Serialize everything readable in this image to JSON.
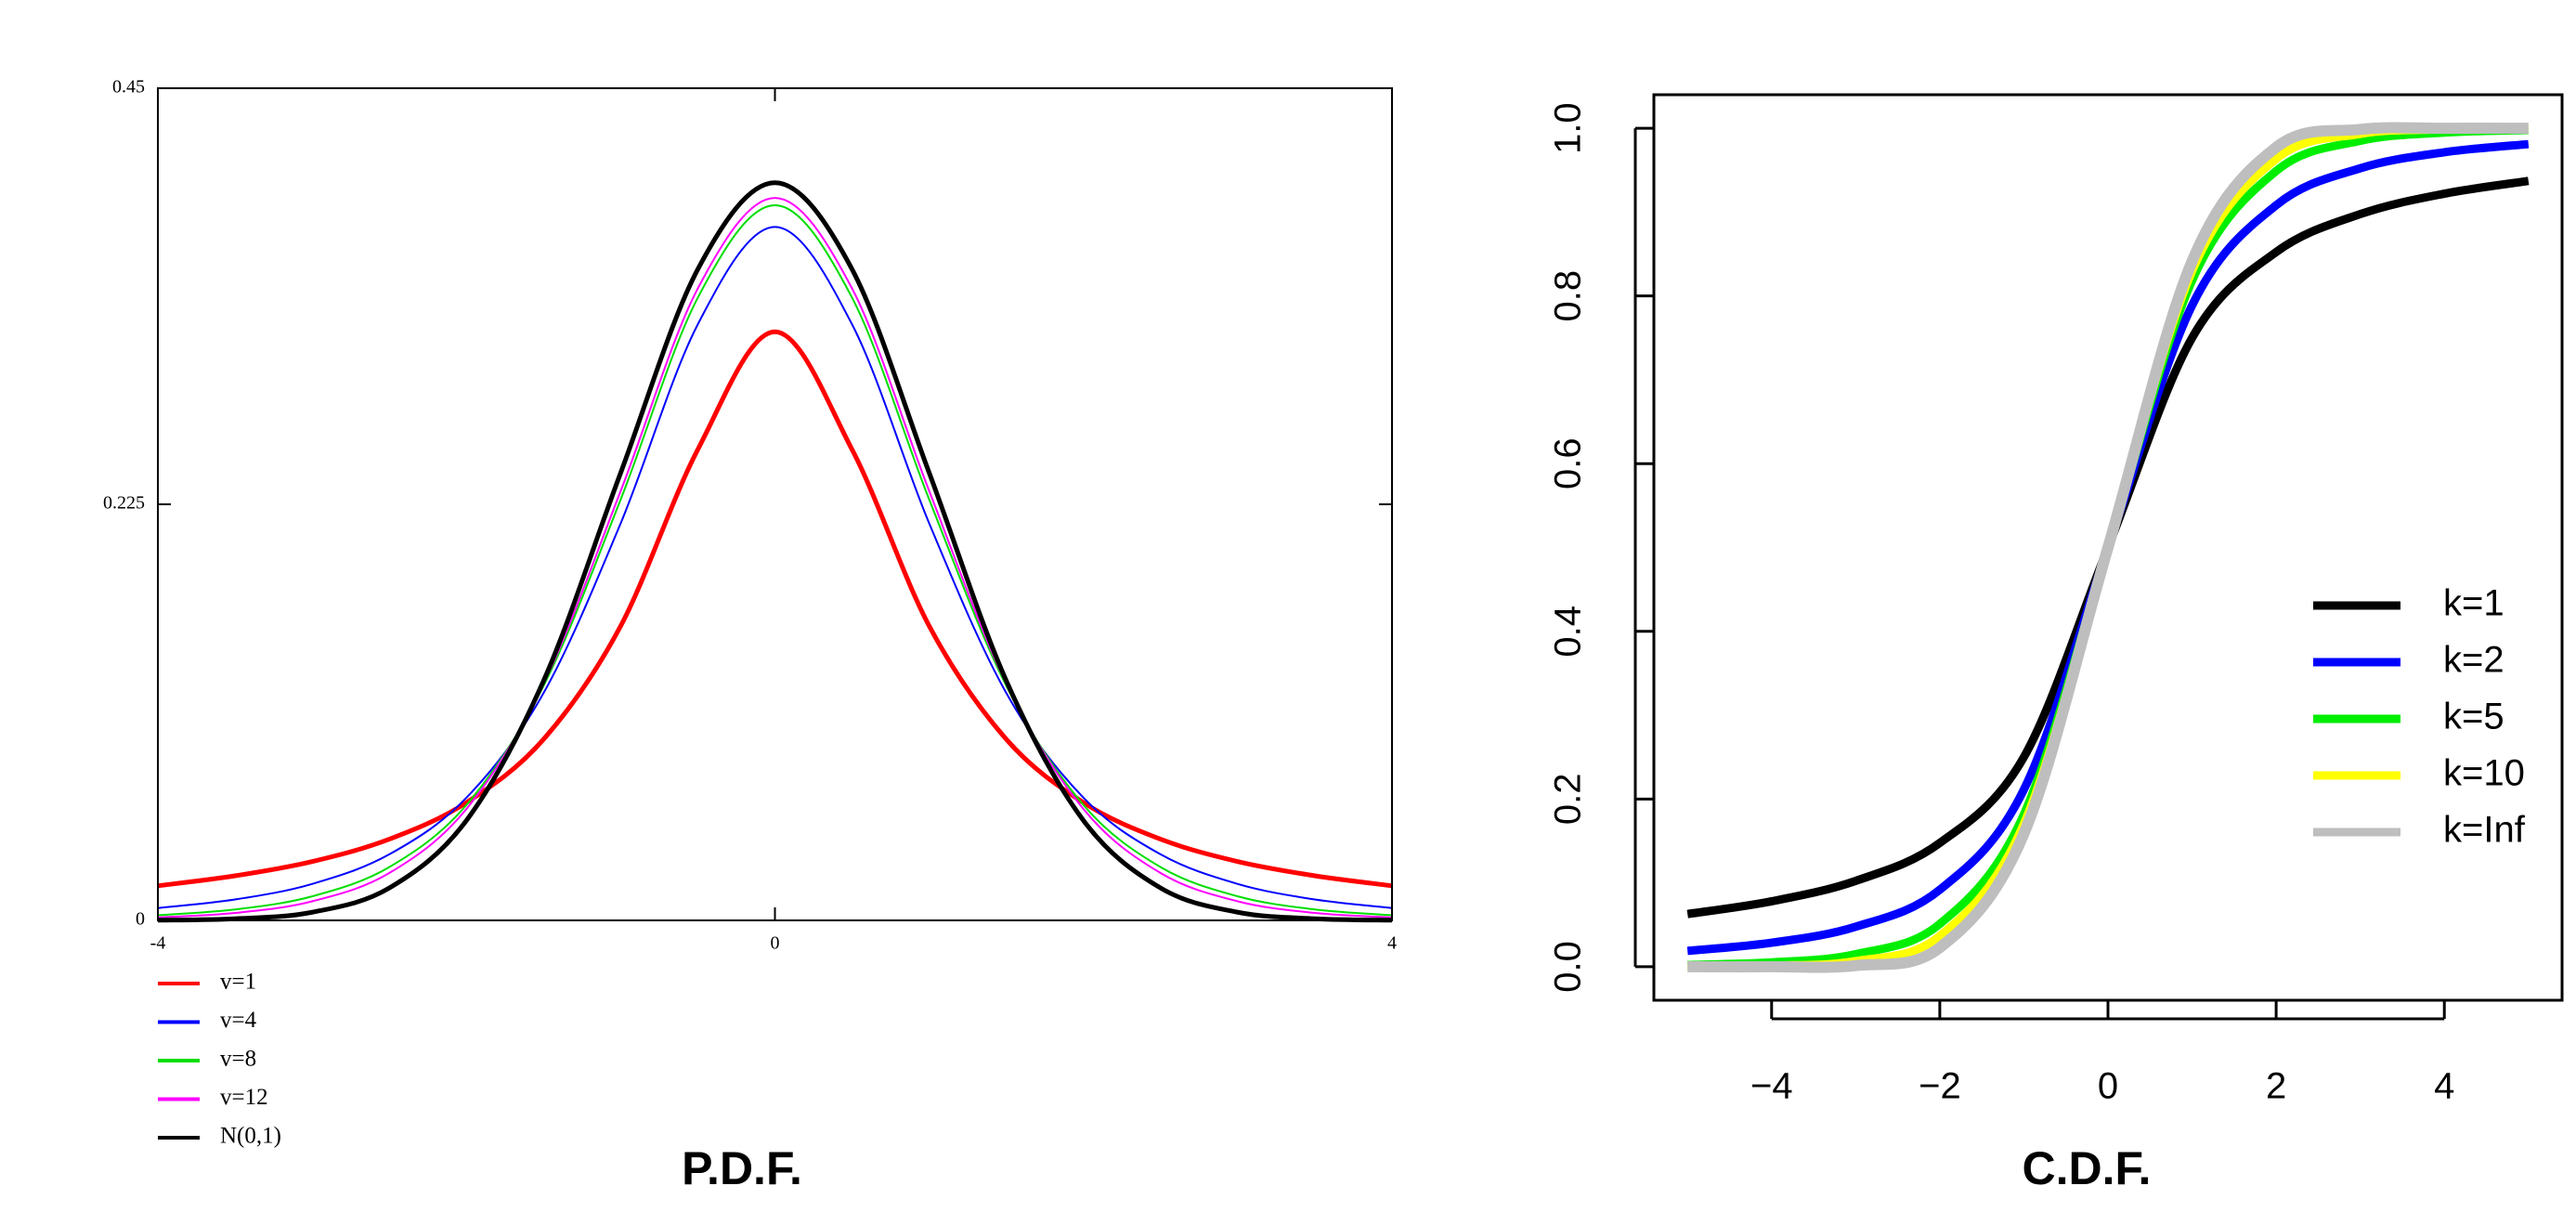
{
  "chart_data": [
    {
      "type": "line",
      "title": "P.D.F.",
      "x": [
        -4,
        -3.5,
        -3,
        -2.5,
        -2,
        -1.5,
        -1,
        -0.5,
        0,
        0.5,
        1,
        1.5,
        2,
        2.5,
        3,
        3.5,
        4
      ],
      "series": [
        {
          "name": "v=1",
          "color": "#ff0000",
          "values": [
            0.0187,
            0.0241,
            0.0318,
            0.0439,
            0.0637,
            0.0979,
            0.1592,
            0.2546,
            0.3183,
            0.2546,
            0.1592,
            0.0979,
            0.0637,
            0.0439,
            0.0318,
            0.0241,
            0.0187
          ]
        },
        {
          "name": "v=4",
          "color": "#0000ff",
          "values": [
            0.0067,
            0.0113,
            0.0197,
            0.0357,
            0.0663,
            0.1229,
            0.2147,
            0.3223,
            0.375,
            0.3223,
            0.2147,
            0.1229,
            0.0663,
            0.0357,
            0.0197,
            0.0113,
            0.0067
          ]
        },
        {
          "name": "v=8",
          "color": "#00dd00",
          "values": [
            0.0028,
            0.0059,
            0.013,
            0.0288,
            0.0624,
            0.1268,
            0.2276,
            0.3367,
            0.3867,
            0.3367,
            0.2276,
            0.1268,
            0.0624,
            0.0288,
            0.013,
            0.0059,
            0.0028
          ]
        },
        {
          "name": "v=12",
          "color": "#ff00ff",
          "values": [
            0.0016,
            0.004,
            0.0103,
            0.0256,
            0.0602,
            0.1279,
            0.2322,
            0.3417,
            0.3907,
            0.3417,
            0.2322,
            0.1279,
            0.0602,
            0.0256,
            0.0103,
            0.004,
            0.0016
          ]
        },
        {
          "name": "N(0,1)",
          "color": "#000000",
          "values": [
            0.0001,
            0.0009,
            0.0044,
            0.0175,
            0.054,
            0.1295,
            0.242,
            0.3521,
            0.3989,
            0.3521,
            0.242,
            0.1295,
            0.054,
            0.0175,
            0.0044,
            0.0009,
            0.0001
          ]
        }
      ],
      "xlim": [
        -4,
        4
      ],
      "ylim": [
        0,
        0.45
      ],
      "xticks": [
        -4,
        0,
        4
      ],
      "yticks": [
        0,
        0.225,
        0.45
      ]
    },
    {
      "type": "line",
      "title": "C.D.F.",
      "x": [
        -5,
        -4,
        -3,
        -2,
        -1,
        0,
        1,
        2,
        3,
        4,
        5
      ],
      "series": [
        {
          "name": "k=1",
          "color": "#000000",
          "values": [
            0.0628,
            0.078,
            0.1024,
            0.1476,
            0.25,
            0.5,
            0.75,
            0.8524,
            0.8976,
            0.922,
            0.9372
          ]
        },
        {
          "name": "k=2",
          "color": "#0000ff",
          "values": [
            0.0189,
            0.0286,
            0.0477,
            0.0918,
            0.2113,
            0.5,
            0.7887,
            0.9082,
            0.9523,
            0.9714,
            0.9811
          ]
        },
        {
          "name": "k=5",
          "color": "#00ee00",
          "values": [
            0.0021,
            0.0052,
            0.015,
            0.051,
            0.1816,
            0.5,
            0.8184,
            0.949,
            0.985,
            0.9948,
            0.9979
          ]
        },
        {
          "name": "k=10",
          "color": "#ffff00",
          "values": [
            0.0003,
            0.0013,
            0.0067,
            0.0367,
            0.1704,
            0.5,
            0.8296,
            0.9633,
            0.9933,
            0.9987,
            0.9997
          ]
        },
        {
          "name": "k=Inf",
          "color": "#bebebe",
          "values": [
            0,
            0,
            0.0013,
            0.0228,
            0.1587,
            0.5,
            0.8413,
            0.9772,
            0.9987,
            1,
            1
          ]
        }
      ],
      "xlim": [
        -5.4,
        5.4
      ],
      "ylim": [
        -0.04,
        1.04
      ],
      "xticks": [
        {
          "value": -4,
          "label": "−4"
        },
        {
          "value": -2,
          "label": "−2"
        },
        0,
        2,
        4
      ],
      "yticks": [
        {
          "value": 0,
          "label": "0.0"
        },
        {
          "value": 0.2,
          "label": "0.2"
        },
        {
          "value": 0.4,
          "label": "0.4"
        },
        {
          "value": 0.6,
          "label": "0.6"
        },
        {
          "value": 0.8,
          "label": "0.8"
        },
        {
          "value": 1,
          "label": "1.0"
        }
      ]
    }
  ]
}
